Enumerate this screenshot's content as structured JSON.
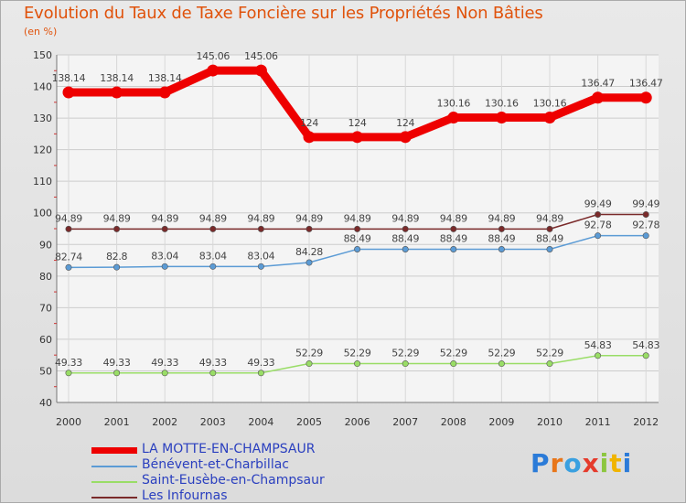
{
  "header": {
    "title": "Evolution du Taux de Taxe Foncière sur les Propriétés Non Bâties",
    "subtitle": "(en %)"
  },
  "logo": {
    "text": "Proxiti"
  },
  "chart_data": {
    "type": "line",
    "title": "Evolution du Taux de Taxe Foncière sur les Propriétés Non Bâties",
    "ylabel": "(en %)",
    "xlabel": "",
    "ylim": [
      40,
      150
    ],
    "yticks": [
      40,
      50,
      60,
      70,
      80,
      90,
      100,
      110,
      120,
      130,
      140,
      150
    ],
    "grid": true,
    "categories": [
      "2000",
      "2001",
      "2002",
      "2003",
      "2004",
      "2005",
      "2006",
      "2007",
      "2008",
      "2009",
      "2010",
      "2011",
      "2012"
    ],
    "series": [
      {
        "name": "LA MOTTE-EN-CHAMPSAUR",
        "color": "#ee0000",
        "values": [
          138.14,
          138.14,
          138.14,
          145.06,
          145.06,
          124,
          124,
          124,
          130.16,
          130.16,
          130.16,
          136.47,
          136.47
        ],
        "labels": [
          "138.14",
          "138.14",
          "138.14",
          "145.06",
          "145.06",
          "124",
          "124",
          "124",
          "130.16",
          "130.16",
          "130.16",
          "136.47",
          "136.47"
        ]
      },
      {
        "name": "Bénévent-et-Charbillac",
        "color": "#5b9bd5",
        "values": [
          82.74,
          82.8,
          83.04,
          83.04,
          83.04,
          84.28,
          88.49,
          88.49,
          88.49,
          88.49,
          88.49,
          92.78,
          92.78
        ],
        "labels": [
          "82.74",
          "82.8",
          "83.04",
          "83.04",
          "83.04",
          "84.28",
          "88.49",
          "88.49",
          "88.49",
          "88.49",
          "88.49",
          "92.78",
          "92.78"
        ]
      },
      {
        "name": "Saint-Eusèbe-en-Champsaur",
        "color": "#99dd66",
        "values": [
          49.33,
          49.33,
          49.33,
          49.33,
          49.33,
          52.29,
          52.29,
          52.29,
          52.29,
          52.29,
          52.29,
          54.83,
          54.83
        ],
        "labels": [
          "49.33",
          "49.33",
          "49.33",
          "49.33",
          "49.33",
          "52.29",
          "52.29",
          "52.29",
          "52.29",
          "52.29",
          "52.29",
          "54.83",
          "54.83"
        ]
      },
      {
        "name": "Les Infournas",
        "color": "#7a2a2a",
        "values": [
          94.89,
          94.89,
          94.89,
          94.89,
          94.89,
          94.89,
          94.89,
          94.89,
          94.89,
          94.89,
          94.89,
          99.49,
          99.49
        ],
        "labels": [
          "94.89",
          "94.89",
          "94.89",
          "94.89",
          "94.89",
          "94.89",
          "94.89",
          "94.89",
          "94.89",
          "94.89",
          "94.89",
          "99.49",
          "99.49"
        ]
      }
    ]
  }
}
